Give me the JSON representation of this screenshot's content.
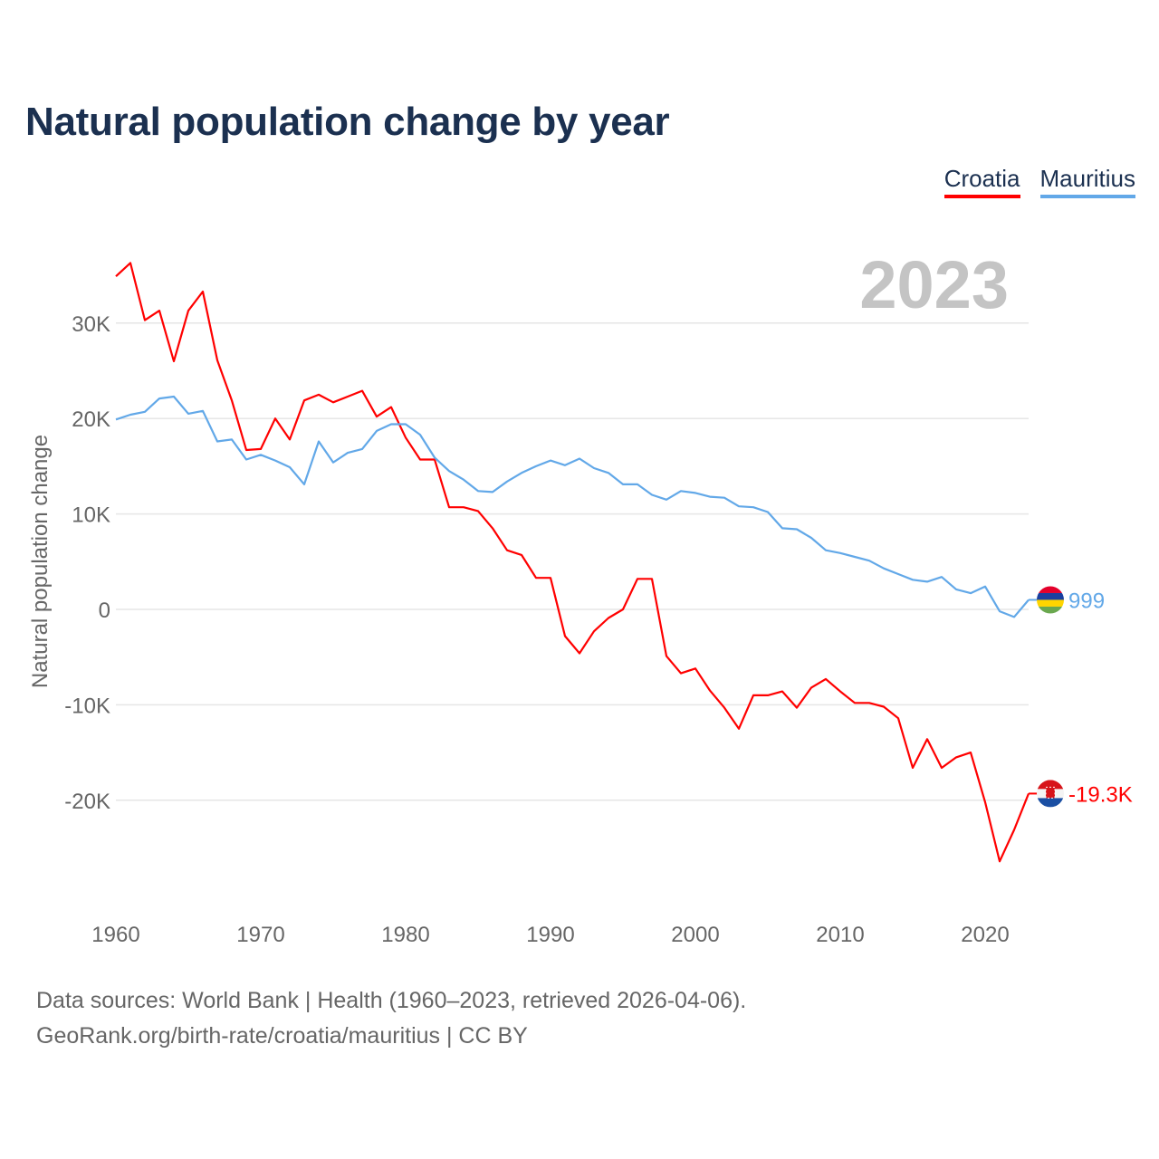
{
  "chart_data": {
    "type": "line",
    "title": "Natural population change by year",
    "xlabel": "",
    "ylabel": "Natural population change",
    "xlim": [
      1960,
      2023
    ],
    "ylim": [
      -30000,
      38000
    ],
    "grid": true,
    "legend_placement": "top-right",
    "year_watermark": "2023",
    "x_ticks": [
      1960,
      1970,
      1980,
      1990,
      2000,
      2010,
      2020
    ],
    "x_tick_labels": [
      "1960",
      "1970",
      "1980",
      "1990",
      "2000",
      "2010",
      "2020"
    ],
    "y_ticks": [
      30000,
      20000,
      10000,
      0,
      -10000,
      -20000
    ],
    "y_tick_labels": [
      "30K",
      "20K",
      "10K",
      "0",
      "-10K",
      "-20K"
    ],
    "x_start": 1960,
    "series": [
      {
        "name": "Croatia",
        "color": "#ff0000",
        "end_label": "-19.3K",
        "flag": "croatia-flag",
        "values": [
          34900,
          36300,
          30300,
          31300,
          26000,
          31300,
          33300,
          26100,
          21900,
          16700,
          16800,
          20000,
          17800,
          21900,
          22500,
          21700,
          22300,
          22900,
          20200,
          21200,
          18000,
          15700,
          15700,
          10700,
          10700,
          10300,
          8500,
          6200,
          5700,
          3300,
          3300,
          -2800,
          -4600,
          -2300,
          -900,
          0,
          3200,
          3200,
          -4900,
          -6700,
          -6200,
          -8500,
          -10300,
          -12500,
          -9000,
          -9000,
          -8600,
          -10300,
          -8200,
          -7300,
          -8600,
          -9800,
          -9800,
          -10200,
          -11400,
          -16600,
          -13600,
          -16600,
          -15500,
          -15000,
          -20200,
          -26400,
          -23100,
          -19300
        ]
      },
      {
        "name": "Mauritius",
        "color": "#62a8e8",
        "end_label": "999",
        "flag": "mauritius-flag",
        "values": [
          19900,
          20400,
          20700,
          22100,
          22300,
          20500,
          20800,
          17600,
          17800,
          15700,
          16200,
          15600,
          14900,
          13100,
          17600,
          15400,
          16400,
          16800,
          18700,
          19400,
          19400,
          18300,
          15900,
          14500,
          13600,
          12400,
          12300,
          13400,
          14300,
          15000,
          15600,
          15100,
          15800,
          14800,
          14300,
          13100,
          13100,
          12000,
          11500,
          12400,
          12200,
          11800,
          11700,
          10800,
          10700,
          10200,
          8500,
          8400,
          7500,
          6200,
          5900,
          5500,
          5100,
          4300,
          3700,
          3100,
          2900,
          3400,
          2100,
          1700,
          2400,
          -200,
          -800,
          999
        ]
      }
    ]
  },
  "footer": {
    "line1": "Data sources: World Bank | Health (1960–2023, retrieved 2026-04-06).",
    "line2": "GeoRank.org/birth-rate/croatia/mauritius | CC BY"
  }
}
